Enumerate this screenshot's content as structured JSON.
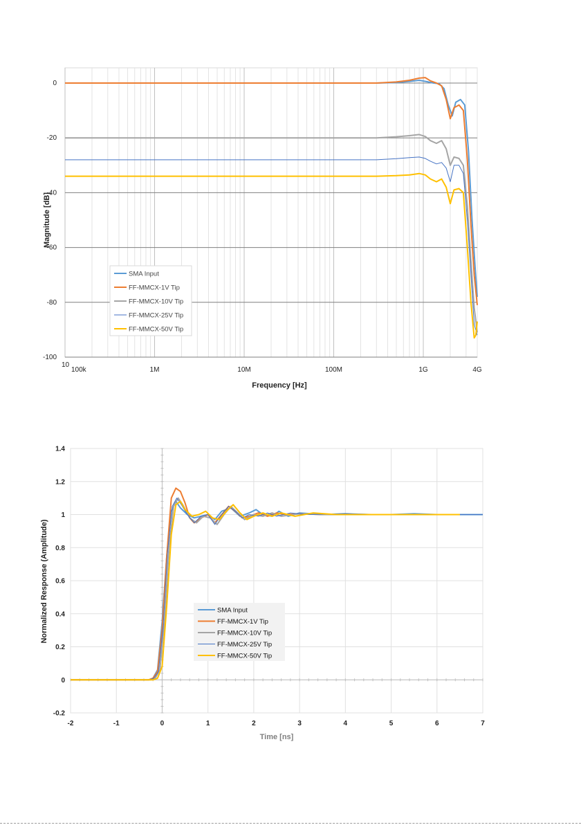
{
  "chart_data": [
    {
      "type": "line",
      "xlabel": "Frequency [Hz]",
      "ylabel": "Magnitude [dB]",
      "x_scale": "log",
      "xlim": [
        100000,
        4000000000
      ],
      "ylim": [
        -100,
        0
      ],
      "y_ticks": [
        0,
        -20,
        -40,
        -60,
        -80,
        -100
      ],
      "y_tick_labels": [
        "0",
        "-20",
        "-40",
        "-60",
        "-80",
        "-100"
      ],
      "x_ticks": [
        100000,
        1000000,
        10000000,
        100000000,
        1000000000,
        4000000000
      ],
      "x_tick_labels": [
        "100k",
        "1M",
        "10M",
        "100M",
        "1G",
        "4G"
      ],
      "stray_label": "10",
      "grid": true,
      "legend_position": "lower-left",
      "series": [
        {
          "name": "SMA Input",
          "color": "#5b9bd5",
          "points": [
            [
              100000.0,
              0
            ],
            [
              300000000.0,
              0
            ],
            [
              500000000.0,
              0.2
            ],
            [
              700000000.0,
              0.6
            ],
            [
              900000000.0,
              1.0
            ],
            [
              1100000000.0,
              0.5
            ],
            [
              1300000000.0,
              0
            ],
            [
              1500000000.0,
              -0.2
            ],
            [
              1700000000.0,
              -2
            ],
            [
              1900000000.0,
              -8
            ],
            [
              2100000000.0,
              -12
            ],
            [
              2300000000.0,
              -7
            ],
            [
              2600000000.0,
              -6
            ],
            [
              2900000000.0,
              -8
            ],
            [
              3200000000.0,
              -25
            ],
            [
              3500000000.0,
              -50
            ],
            [
              3800000000.0,
              -68
            ],
            [
              4000000000.0,
              -78
            ]
          ]
        },
        {
          "name": "FF-MMCX-1V Tip",
          "color": "#ed7d31",
          "points": [
            [
              100000.0,
              0
            ],
            [
              300000000.0,
              0
            ],
            [
              500000000.0,
              0.4
            ],
            [
              700000000.0,
              1.0
            ],
            [
              900000000.0,
              1.8
            ],
            [
              1050000000.0,
              2
            ],
            [
              1200000000.0,
              0.8
            ],
            [
              1400000000.0,
              0
            ],
            [
              1600000000.0,
              -1
            ],
            [
              1800000000.0,
              -6
            ],
            [
              2000000000.0,
              -13
            ],
            [
              2200000000.0,
              -9
            ],
            [
              2500000000.0,
              -8
            ],
            [
              2800000000.0,
              -10
            ],
            [
              3100000000.0,
              -28
            ],
            [
              3400000000.0,
              -52
            ],
            [
              3700000000.0,
              -70
            ],
            [
              4000000000.0,
              -81
            ]
          ]
        },
        {
          "name": "FF-MMCX-10V Tip",
          "color": "#a5a5a5",
          "points": [
            [
              100000.0,
              -20
            ],
            [
              300000000.0,
              -20
            ],
            [
              500000000.0,
              -19.6
            ],
            [
              700000000.0,
              -19.2
            ],
            [
              900000000.0,
              -18.8
            ],
            [
              1050000000.0,
              -19.5
            ],
            [
              1200000000.0,
              -21
            ],
            [
              1400000000.0,
              -22
            ],
            [
              1600000000.0,
              -21
            ],
            [
              1800000000.0,
              -24
            ],
            [
              2000000000.0,
              -30
            ],
            [
              2200000000.0,
              -27
            ],
            [
              2500000000.0,
              -27.5
            ],
            [
              2800000000.0,
              -30
            ],
            [
              3100000000.0,
              -45
            ],
            [
              3400000000.0,
              -65
            ],
            [
              3700000000.0,
              -82
            ],
            [
              4000000000.0,
              -91
            ]
          ]
        },
        {
          "name": "FF-MMCX-25V Tip",
          "color": "#4472c4",
          "points": [
            [
              100000.0,
              -28
            ],
            [
              300000000.0,
              -28
            ],
            [
              500000000.0,
              -27.6
            ],
            [
              700000000.0,
              -27.2
            ],
            [
              900000000.0,
              -27
            ],
            [
              1050000000.0,
              -27.5
            ],
            [
              1200000000.0,
              -28.5
            ],
            [
              1400000000.0,
              -29.5
            ],
            [
              1600000000.0,
              -29
            ],
            [
              1800000000.0,
              -31
            ],
            [
              2000000000.0,
              -36
            ],
            [
              2200000000.0,
              -30
            ],
            [
              2500000000.0,
              -30
            ],
            [
              2800000000.0,
              -33
            ],
            [
              3100000000.0,
              -50
            ],
            [
              3400000000.0,
              -70
            ],
            [
              3700000000.0,
              -88
            ],
            [
              4000000000.0,
              -92
            ]
          ]
        },
        {
          "name": "FF-MMCX-50V Tip",
          "color": "#ffc000",
          "points": [
            [
              100000.0,
              -34
            ],
            [
              300000000.0,
              -34
            ],
            [
              500000000.0,
              -33.8
            ],
            [
              700000000.0,
              -33.5
            ],
            [
              900000000.0,
              -33
            ],
            [
              1050000000.0,
              -33.5
            ],
            [
              1200000000.0,
              -35
            ],
            [
              1400000000.0,
              -36
            ],
            [
              1600000000.0,
              -35
            ],
            [
              1800000000.0,
              -38
            ],
            [
              2000000000.0,
              -44
            ],
            [
              2200000000.0,
              -39
            ],
            [
              2500000000.0,
              -38.5
            ],
            [
              2800000000.0,
              -40
            ],
            [
              3100000000.0,
              -60
            ],
            [
              3400000000.0,
              -80
            ],
            [
              3700000000.0,
              -93
            ],
            [
              3850000000.0,
              -92
            ],
            [
              4000000000.0,
              -87
            ]
          ]
        }
      ]
    },
    {
      "type": "line",
      "xlabel": "Time [ns]",
      "ylabel": "Normalized Response (Amplitude)",
      "xlim": [
        -2,
        7
      ],
      "ylim": [
        -0.2,
        1.4
      ],
      "x_ticks": [
        -2,
        -1,
        0,
        1,
        2,
        3,
        4,
        5,
        6,
        7
      ],
      "x_tick_labels": [
        "-2",
        "-1",
        "0",
        "1",
        "2",
        "3",
        "4",
        "5",
        "6",
        "7"
      ],
      "y_ticks": [
        1.4,
        1.2,
        1,
        0.8,
        0.6,
        0.4,
        0.2,
        0,
        -0.2
      ],
      "y_tick_labels": [
        "1.4",
        "1.2",
        "1",
        "0.8",
        "0.6",
        "0.4",
        "0.2",
        "0",
        "-0.2"
      ],
      "grid": true,
      "legend_position": "center",
      "series": [
        {
          "name": "SMA Input",
          "color": "#5b9bd5",
          "points": [
            [
              -2,
              0
            ],
            [
              -0.3,
              0
            ],
            [
              -0.2,
              0.01
            ],
            [
              -0.1,
              0.06
            ],
            [
              0,
              0.35
            ],
            [
              0.1,
              0.75
            ],
            [
              0.2,
              1.02
            ],
            [
              0.3,
              1.08
            ],
            [
              0.4,
              1.04
            ],
            [
              0.55,
              1.0
            ],
            [
              0.7,
              0.98
            ],
            [
              0.85,
              0.99
            ],
            [
              1.0,
              1.0
            ],
            [
              1.15,
              0.97
            ],
            [
              1.3,
              1.02
            ],
            [
              1.5,
              1.04
            ],
            [
              1.7,
              0.99
            ],
            [
              1.9,
              1.01
            ],
            [
              2.05,
              1.03
            ],
            [
              2.2,
              1.0
            ],
            [
              2.4,
              0.99
            ],
            [
              2.55,
              1.02
            ],
            [
              2.75,
              0.99
            ],
            [
              3.0,
              1.01
            ],
            [
              3.5,
              1.0
            ],
            [
              4,
              1.005
            ],
            [
              4.5,
              1.0
            ],
            [
              5,
              1.0
            ],
            [
              5.5,
              1.005
            ],
            [
              6,
              1.0
            ],
            [
              6.5,
              1.0
            ],
            [
              7,
              1.0
            ]
          ]
        },
        {
          "name": "FF-MMCX-1V Tip",
          "color": "#ed7d31",
          "points": [
            [
              -2,
              0
            ],
            [
              -0.3,
              0
            ],
            [
              -0.2,
              0.01
            ],
            [
              -0.1,
              0.05
            ],
            [
              0,
              0.3
            ],
            [
              0.1,
              0.75
            ],
            [
              0.2,
              1.1
            ],
            [
              0.3,
              1.16
            ],
            [
              0.4,
              1.14
            ],
            [
              0.5,
              1.07
            ],
            [
              0.6,
              0.98
            ],
            [
              0.7,
              0.95
            ],
            [
              0.85,
              0.98
            ],
            [
              1.0,
              1.0
            ],
            [
              1.15,
              0.95
            ],
            [
              1.3,
              1.0
            ],
            [
              1.45,
              1.05
            ],
            [
              1.6,
              1.02
            ],
            [
              1.75,
              0.98
            ],
            [
              1.9,
              0.99
            ],
            [
              2.1,
              1.01
            ],
            [
              2.3,
              0.99
            ],
            [
              2.5,
              1.01
            ],
            [
              2.7,
              1.0
            ],
            [
              3.0,
              1.005
            ],
            [
              3.5,
              1.0
            ],
            [
              4,
              1.0
            ],
            [
              5,
              1.0
            ],
            [
              6,
              1.0
            ],
            [
              6.5,
              1.0
            ]
          ]
        },
        {
          "name": "FF-MMCX-10V Tip",
          "color": "#a5a5a5",
          "points": [
            [
              -2,
              0
            ],
            [
              -0.25,
              0
            ],
            [
              -0.15,
              0.01
            ],
            [
              -0.05,
              0.06
            ],
            [
              0.05,
              0.35
            ],
            [
              0.15,
              0.8
            ],
            [
              0.25,
              1.05
            ],
            [
              0.35,
              1.1
            ],
            [
              0.45,
              1.06
            ],
            [
              0.6,
              0.98
            ],
            [
              0.75,
              0.95
            ],
            [
              0.9,
              0.99
            ],
            [
              1.05,
              0.98
            ],
            [
              1.2,
              0.94
            ],
            [
              1.35,
              1.0
            ],
            [
              1.5,
              1.05
            ],
            [
              1.65,
              1.01
            ],
            [
              1.8,
              0.97
            ],
            [
              2.0,
              1.0
            ],
            [
              2.2,
              0.99
            ],
            [
              2.4,
              1.01
            ],
            [
              2.6,
              0.99
            ],
            [
              3.0,
              1.005
            ],
            [
              3.5,
              1.0
            ],
            [
              4,
              1.0
            ],
            [
              5,
              1.0
            ],
            [
              6,
              1.0
            ],
            [
              6.5,
              1.0
            ]
          ]
        },
        {
          "name": "FF-MMCX-25V Tip",
          "color": "#4472c4",
          "points": [
            [
              -2,
              0
            ],
            [
              -0.28,
              0
            ],
            [
              -0.18,
              0.01
            ],
            [
              -0.08,
              0.05
            ],
            [
              0.02,
              0.32
            ],
            [
              0.12,
              0.78
            ],
            [
              0.22,
              1.05
            ],
            [
              0.32,
              1.1
            ],
            [
              0.42,
              1.06
            ],
            [
              0.55,
              1.0
            ],
            [
              0.7,
              0.95
            ],
            [
              0.85,
              0.99
            ],
            [
              1.0,
              1.0
            ],
            [
              1.15,
              0.94
            ],
            [
              1.3,
              1.0
            ],
            [
              1.45,
              1.05
            ],
            [
              1.6,
              1.02
            ],
            [
              1.75,
              0.98
            ],
            [
              1.9,
              1.0
            ],
            [
              2.1,
              0.99
            ],
            [
              2.3,
              1.01
            ],
            [
              2.5,
              0.99
            ],
            [
              2.8,
              1.01
            ],
            [
              3.2,
              1.0
            ],
            [
              4,
              1.005
            ],
            [
              5,
              1.0
            ],
            [
              6,
              1.0
            ],
            [
              7,
              1.0
            ]
          ]
        },
        {
          "name": "FF-MMCX-50V Tip",
          "color": "#ffc000",
          "points": [
            [
              -2,
              0
            ],
            [
              -0.2,
              0
            ],
            [
              -0.1,
              0.01
            ],
            [
              0,
              0.08
            ],
            [
              0.1,
              0.45
            ],
            [
              0.2,
              0.88
            ],
            [
              0.3,
              1.06
            ],
            [
              0.4,
              1.08
            ],
            [
              0.5,
              1.03
            ],
            [
              0.65,
              0.99
            ],
            [
              0.8,
              1.0
            ],
            [
              0.95,
              1.02
            ],
            [
              1.1,
              0.98
            ],
            [
              1.25,
              0.97
            ],
            [
              1.4,
              1.02
            ],
            [
              1.55,
              1.06
            ],
            [
              1.7,
              1.01
            ],
            [
              1.85,
              0.97
            ],
            [
              2.0,
              0.99
            ],
            [
              2.2,
              1.01
            ],
            [
              2.4,
              0.99
            ],
            [
              2.6,
              1.01
            ],
            [
              2.9,
              0.99
            ],
            [
              3.3,
              1.01
            ],
            [
              3.8,
              1.0
            ],
            [
              4.5,
              1.0
            ],
            [
              5.5,
              1.0
            ],
            [
              6.5,
              1.0
            ]
          ]
        }
      ]
    }
  ]
}
